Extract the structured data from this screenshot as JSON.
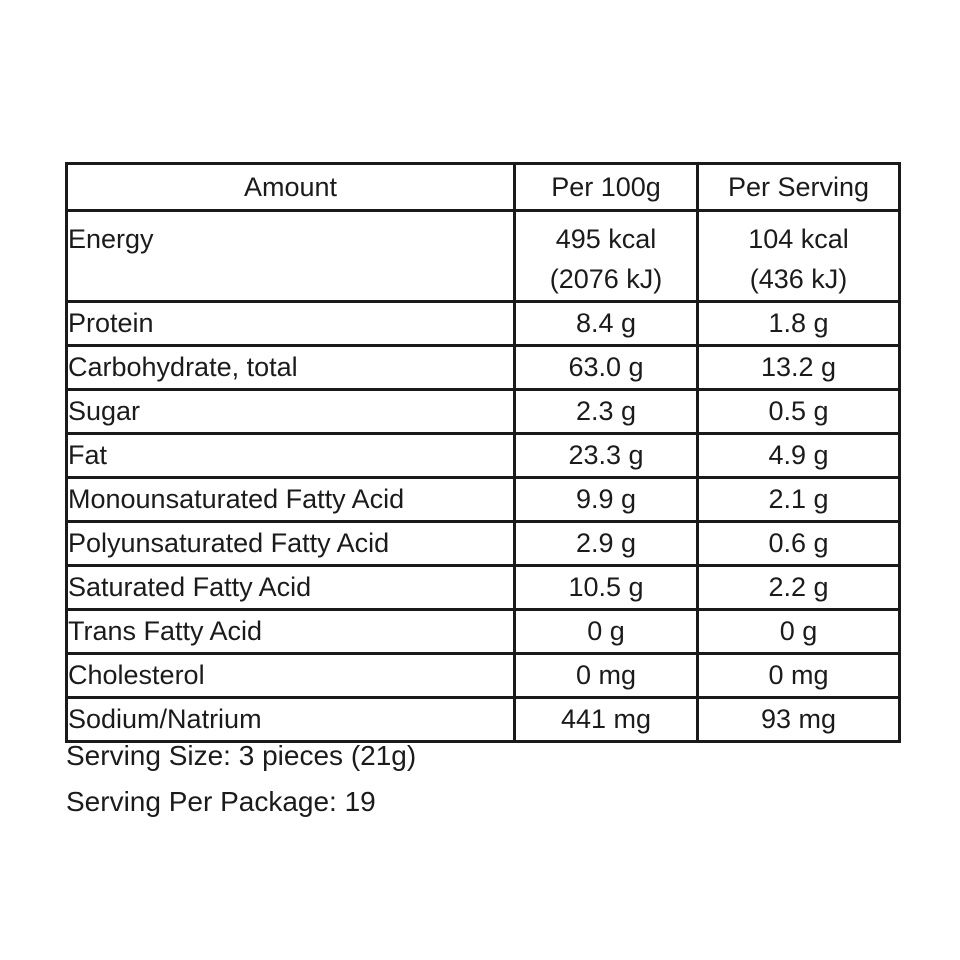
{
  "table": {
    "columns": [
      "Amount",
      "Per 100g",
      "Per Serving"
    ],
    "rows": [
      {
        "label": "Energy",
        "per_100g": "495 kcal\n(2076 kJ)",
        "per_serving": "104 kcal\n(436 kJ)",
        "tall": true
      },
      {
        "label": "Protein",
        "per_100g": "8.4 g",
        "per_serving": "1.8 g"
      },
      {
        "label": "Carbohydrate, total",
        "per_100g": "63.0 g",
        "per_serving": "13.2 g"
      },
      {
        "label": "Sugar",
        "per_100g": "2.3 g",
        "per_serving": "0.5 g"
      },
      {
        "label": "Fat",
        "per_100g": "23.3 g",
        "per_serving": "4.9 g"
      },
      {
        "label": "Monounsaturated Fatty Acid",
        "per_100g": "9.9 g",
        "per_serving": "2.1 g"
      },
      {
        "label": "Polyunsaturated Fatty Acid",
        "per_100g": "2.9 g",
        "per_serving": "0.6 g"
      },
      {
        "label": "Saturated Fatty Acid",
        "per_100g": "10.5 g",
        "per_serving": "2.2 g"
      },
      {
        "label": "Trans Fatty Acid",
        "per_100g": "0 g",
        "per_serving": "0 g"
      },
      {
        "label": "Cholesterol",
        "per_100g": "0 mg",
        "per_serving": "0 mg"
      },
      {
        "label": "Sodium/Natrium",
        "per_100g": "441 mg",
        "per_serving": "93 mg"
      }
    ]
  },
  "footer": {
    "serving_size": "Serving Size: 3 pieces (21g)",
    "serving_per_package": "Serving Per Package: 19"
  },
  "colors": {
    "text": "#1b1b1b",
    "border": "#1a1a1a",
    "background": "#ffffff"
  }
}
